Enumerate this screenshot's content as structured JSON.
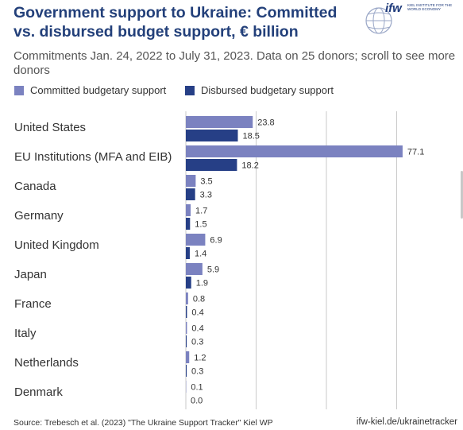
{
  "header": {
    "title": "Government support to Ukraine: Committed vs. disbursed budget support, € billion",
    "subtitle": "Commitments Jan. 24, 2022 to July 31, 2023. Data on 25 donors; scroll to see more donors"
  },
  "logo": {
    "word": "ifw",
    "tagline": "KIEL INSTITUTE FOR THE WORLD ECONOMY"
  },
  "legend": [
    {
      "label": "Committed budgetary support",
      "color": "#7b82c0"
    },
    {
      "label": "Disbursed budgetary support",
      "color": "#263f86"
    }
  ],
  "chart_data": {
    "type": "bar",
    "orientation": "horizontal",
    "categories": [
      "United States",
      "EU Institutions (MFA and EIB)",
      "Canada",
      "Germany",
      "United Kingdom",
      "Japan",
      "France",
      "Italy",
      "Netherlands",
      "Denmark"
    ],
    "series": [
      {
        "name": "Committed budgetary support",
        "color": "#7b82c0",
        "values": [
          23.8,
          77.1,
          3.5,
          1.7,
          6.9,
          5.9,
          0.8,
          0.4,
          1.2,
          0.1
        ]
      },
      {
        "name": "Disbursed budgetary support",
        "color": "#263f86",
        "values": [
          18.5,
          18.2,
          3.3,
          1.5,
          1.4,
          1.9,
          0.4,
          0.3,
          0.3,
          0.0
        ]
      }
    ],
    "value_labels": [
      [
        "23.8",
        "77.1",
        "3.5",
        "1.7",
        "6.9",
        "5.9",
        "0.8",
        "0.4",
        "1.2",
        "0.1"
      ],
      [
        "18.5",
        "18.2",
        "3.3",
        "1.5",
        "1.4",
        "1.9",
        "0.4",
        "0.3",
        "0.3",
        "0.0"
      ]
    ],
    "xlim": [
      0,
      80
    ],
    "gridlines": [
      25,
      50,
      75
    ],
    "grid": true
  },
  "footer": {
    "source": "Source: Trebesch et al. (2023) \"The Ukraine Support Tracker\" Kiel WP",
    "link": "ifw-kiel.de/ukrainetracker"
  }
}
